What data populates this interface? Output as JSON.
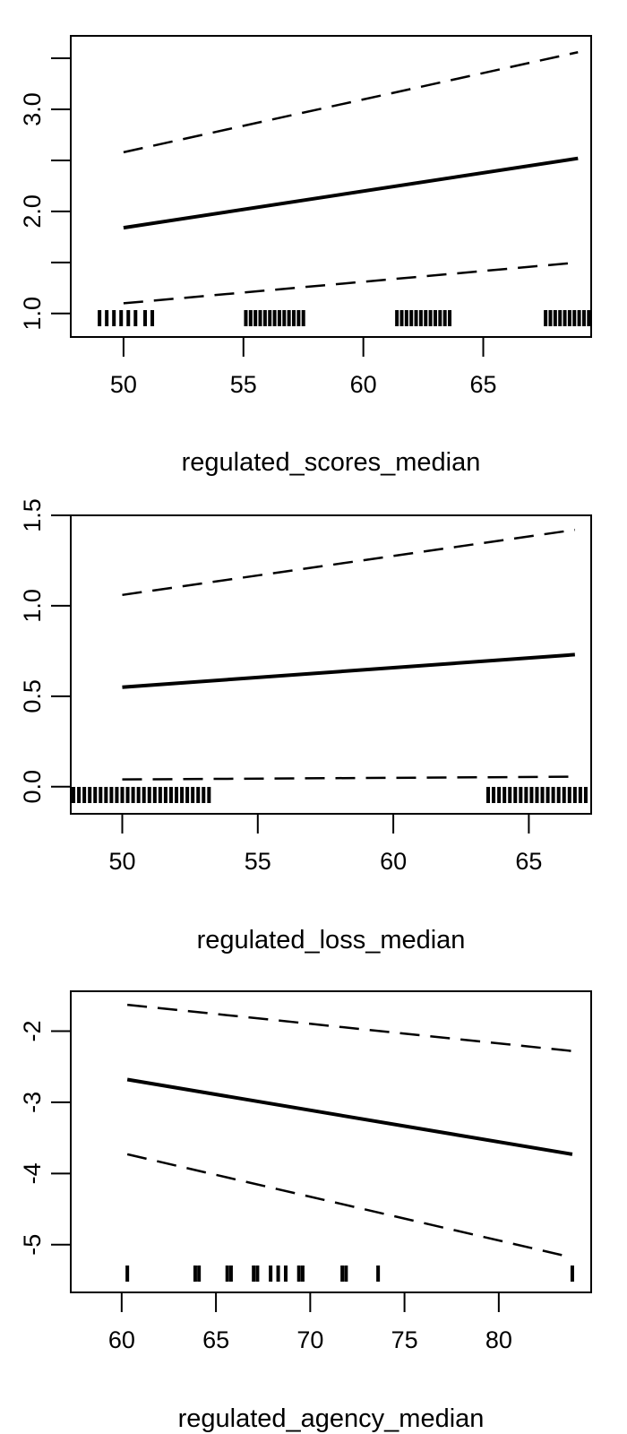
{
  "chart_data": [
    {
      "type": "line",
      "xlabel": "regulated_scores_median",
      "ylabel": "",
      "xlim": [
        47.8,
        69.5
      ],
      "ylim": [
        0.77,
        3.72
      ],
      "x_ticks": [
        50,
        55,
        60,
        65
      ],
      "y_ticks": [
        1.0,
        1.5,
        2.0,
        2.5,
        3.0,
        3.5
      ],
      "y_tick_labels": [
        "1.0",
        "",
        "2.0",
        "",
        "3.0",
        ""
      ],
      "series": [
        {
          "style": "solid",
          "x": [
            50,
            68.95
          ],
          "y": [
            1.84,
            2.52
          ]
        },
        {
          "style": "dashed",
          "x": [
            50,
            68.95
          ],
          "y": [
            2.58,
            3.56
          ]
        },
        {
          "style": "dashed",
          "x": [
            50,
            68.95
          ],
          "y": [
            1.1,
            1.5
          ]
        }
      ],
      "rug": [
        49.0,
        49.3,
        49.6,
        49.9,
        50.2,
        50.5,
        50.9,
        51.2,
        55.1,
        55.3,
        55.5,
        55.7,
        55.9,
        56.1,
        56.3,
        56.5,
        56.7,
        56.9,
        57.1,
        57.3,
        57.5,
        61.4,
        61.6,
        61.8,
        62.0,
        62.2,
        62.4,
        62.6,
        62.8,
        63.0,
        63.2,
        63.4,
        63.6,
        67.6,
        67.8,
        68.0,
        68.2,
        68.4,
        68.6,
        68.8,
        69.0,
        69.2,
        69.4
      ]
    },
    {
      "type": "line",
      "xlabel": "regulated_loss_median",
      "ylabel": "",
      "xlim": [
        48.1,
        67.3
      ],
      "ylim": [
        -0.15,
        1.5
      ],
      "x_ticks": [
        50,
        55,
        60,
        65
      ],
      "y_ticks": [
        0.0,
        0.5,
        1.0,
        1.5
      ],
      "y_tick_labels": [
        "0.0",
        "0.5",
        "1.0",
        "1.5"
      ],
      "series": [
        {
          "style": "solid",
          "x": [
            50,
            66.7
          ],
          "y": [
            0.55,
            0.73
          ]
        },
        {
          "style": "dashed",
          "x": [
            50,
            66.7
          ],
          "y": [
            1.06,
            1.42
          ]
        },
        {
          "style": "dashed",
          "x": [
            50,
            66.7
          ],
          "y": [
            0.04,
            0.055
          ]
        }
      ],
      "rug": [
        48.2,
        48.4,
        48.6,
        48.8,
        49.0,
        49.2,
        49.4,
        49.6,
        49.8,
        50.0,
        50.2,
        50.4,
        50.6,
        50.8,
        51.0,
        51.2,
        51.4,
        51.6,
        51.8,
        52.0,
        52.2,
        52.4,
        52.6,
        52.8,
        53.0,
        53.2,
        63.5,
        63.7,
        63.9,
        64.1,
        64.3,
        64.5,
        64.7,
        64.9,
        65.1,
        65.3,
        65.5,
        65.7,
        65.9,
        66.1,
        66.3,
        66.5,
        66.7,
        66.9,
        67.1
      ]
    },
    {
      "type": "line",
      "xlabel": "regulated_agency_median",
      "ylabel": "",
      "xlim": [
        57.3,
        84.9
      ],
      "ylim": [
        -5.67,
        -1.44
      ],
      "x_ticks": [
        60,
        65,
        70,
        75,
        80
      ],
      "y_ticks": [
        -2,
        -3,
        -4,
        -5
      ],
      "y_tick_labels": [
        "-2",
        "-3",
        "-4",
        "-5"
      ],
      "series": [
        {
          "style": "solid",
          "x": [
            60.3,
            83.9
          ],
          "y": [
            -2.68,
            -3.73
          ]
        },
        {
          "style": "dashed",
          "x": [
            60.3,
            83.9
          ],
          "y": [
            -1.63,
            -2.28
          ]
        },
        {
          "style": "dashed",
          "x": [
            60.3,
            83.9
          ],
          "y": [
            -3.73,
            -5.18
          ]
        }
      ],
      "rug": [
        60.3,
        63.9,
        64.1,
        65.6,
        65.8,
        67.0,
        67.2,
        67.9,
        68.3,
        68.7,
        69.4,
        69.6,
        71.7,
        71.9,
        73.6,
        83.9
      ]
    }
  ]
}
